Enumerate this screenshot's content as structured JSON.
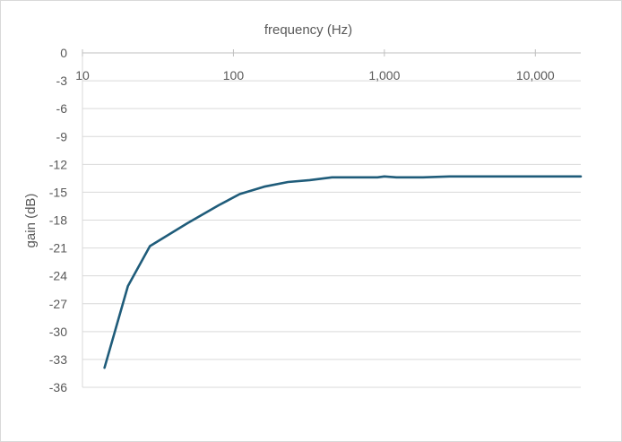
{
  "chart_data": {
    "type": "line",
    "title": "",
    "xlabel": "frequency (Hz)",
    "ylabel": "gain (dB)",
    "x_scale": "log",
    "x_axis_position": "top",
    "xlim": [
      10,
      20000
    ],
    "ylim": [
      -36,
      0
    ],
    "x_ticks": [
      10,
      100,
      1000,
      10000
    ],
    "x_tick_labels": [
      "10",
      "100",
      "1,000",
      "10,000"
    ],
    "y_ticks": [
      0,
      -3,
      -6,
      -9,
      -12,
      -15,
      -18,
      -21,
      -24,
      -27,
      -30,
      -33,
      -36
    ],
    "y_tick_labels": [
      "0",
      "-3",
      "-6",
      "-9",
      "-12",
      "-15",
      "-18",
      "-21",
      "-24",
      "-27",
      "-30",
      "-33",
      "-36"
    ],
    "grid": "horizontal",
    "legend": "none",
    "series": [
      {
        "color": "#1f5c7a",
        "x": [
          14,
          20,
          28,
          50,
          80,
          110,
          160,
          230,
          320,
          450,
          700,
          900,
          1000,
          1200,
          1800,
          2700,
          5000,
          10000,
          20000
        ],
        "y": [
          -33.9,
          -25.1,
          -20.8,
          -18.3,
          -16.4,
          -15.2,
          -14.4,
          -13.9,
          -13.7,
          -13.4,
          -13.4,
          -13.4,
          -13.3,
          -13.4,
          -13.4,
          -13.3,
          -13.3,
          -13.3,
          -13.3
        ]
      }
    ]
  }
}
